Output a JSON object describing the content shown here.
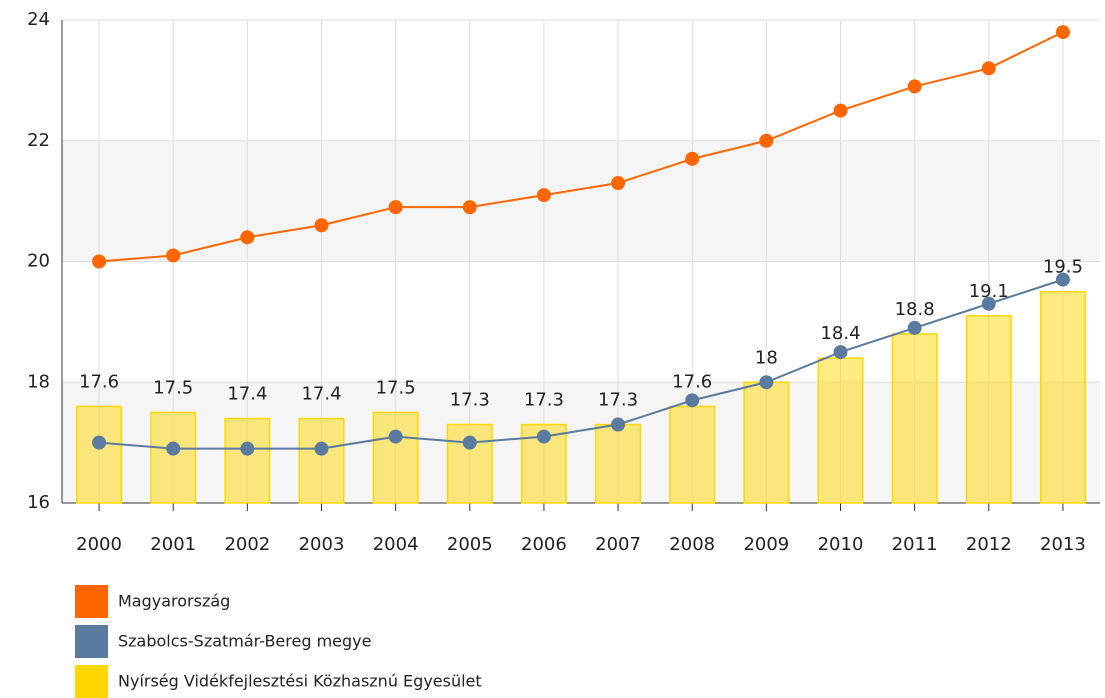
{
  "chart_data": {
    "type": "combo",
    "categories": [
      "2000",
      "2001",
      "2002",
      "2003",
      "2004",
      "2005",
      "2006",
      "2007",
      "2008",
      "2009",
      "2010",
      "2011",
      "2012",
      "2013"
    ],
    "series": [
      {
        "name": "Magyarország",
        "type": "line",
        "color": "#ff6600",
        "values": [
          20.0,
          20.1,
          20.4,
          20.6,
          20.9,
          20.9,
          21.1,
          21.3,
          21.7,
          22.0,
          22.5,
          22.9,
          23.2,
          23.8
        ]
      },
      {
        "name": "Szabolcs-Szatmár-Bereg megye",
        "type": "line",
        "color": "#5b7aa0",
        "values": [
          17.0,
          16.9,
          16.9,
          16.9,
          17.1,
          17.0,
          17.1,
          17.3,
          17.7,
          18.0,
          18.5,
          18.9,
          19.3,
          19.7
        ]
      },
      {
        "name": "Nyírség Vidékfejlesztési Közhasznú Egyesület",
        "type": "bar",
        "color": "#ffd700",
        "values": [
          17.6,
          17.5,
          17.4,
          17.4,
          17.5,
          17.3,
          17.3,
          17.3,
          17.6,
          18,
          18.4,
          18.8,
          19.1,
          19.5
        ]
      }
    ],
    "ylim": [
      16,
      24
    ],
    "yticks": [
      16,
      18,
      20,
      22,
      24
    ],
    "grid": true,
    "band_color": "#f5f5f5"
  }
}
